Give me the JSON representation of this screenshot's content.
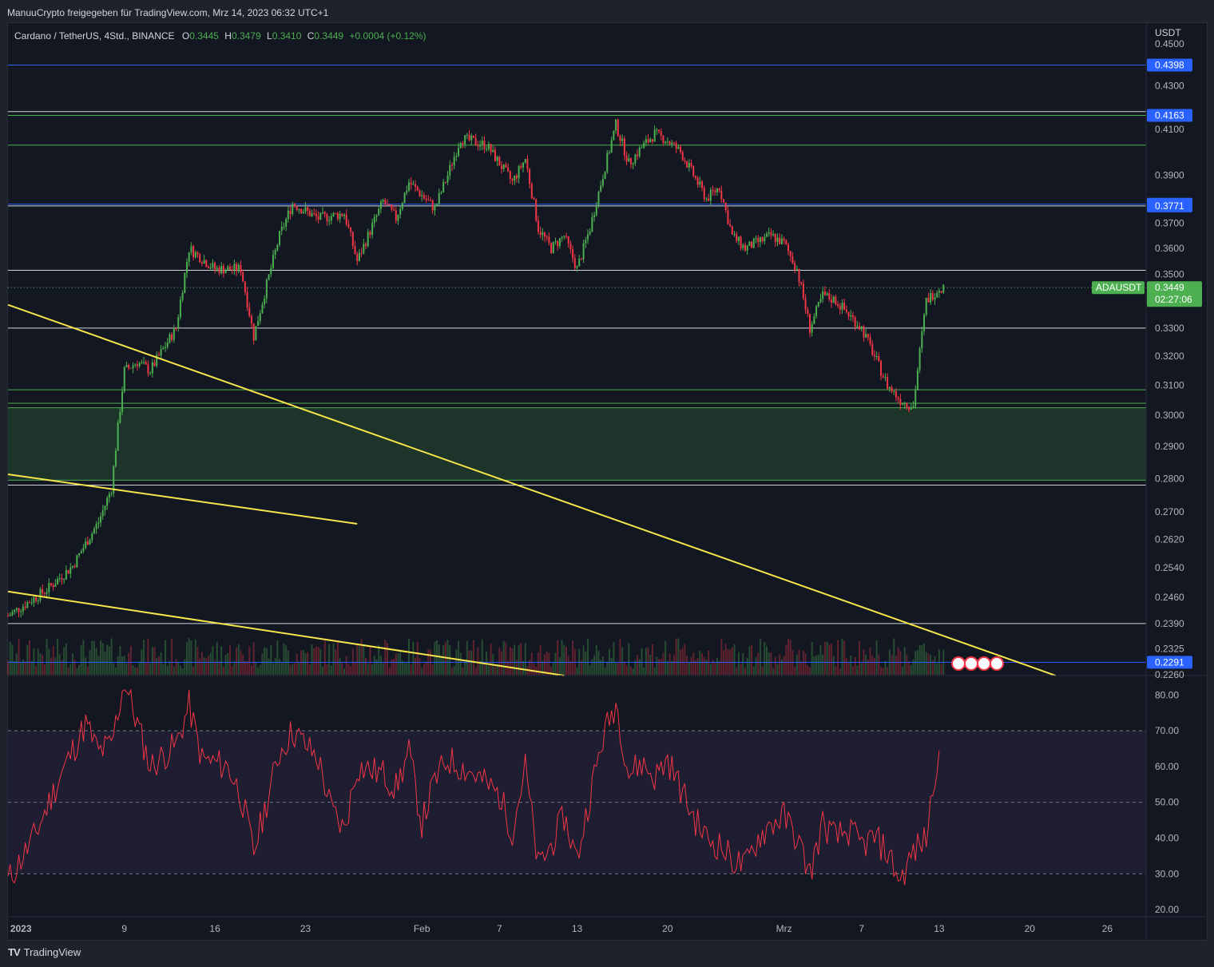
{
  "header": {
    "publisher": "ManuuCrypto freigegeben für TradingView.com, Mrz 14, 2023 06:32 UTC+1"
  },
  "legend": {
    "symbol": "Cardano / TetherUS, 4Std., BINANCE",
    "o_label": "O",
    "o_value": "0.3445",
    "h_label": "H",
    "h_value": "0.3479",
    "l_label": "L",
    "l_value": "0.3410",
    "c_label": "C",
    "c_value": "0.3449",
    "change": "+0.0004 (+0.12%)"
  },
  "footer": {
    "brand": "TradingView",
    "logo": "TV"
  },
  "colors": {
    "up": "#4caf50",
    "down": "#f23645",
    "bg": "#131722",
    "trendline": "#f7e54b",
    "blue_level": "#2962ff",
    "rsi": "#f23645"
  },
  "chart_data": [
    {
      "type": "candlestick",
      "title": "Cardano / TetherUS, 4Std., BINANCE",
      "y_unit": "USDT",
      "y_scale": "log",
      "ylim": [
        0.226,
        0.46
      ],
      "y_ticks": [
        "0.4500",
        "0.4300",
        "0.4100",
        "0.3900",
        "0.3700",
        "0.3600",
        "0.3500",
        "0.3300",
        "0.3200",
        "0.3100",
        "0.3000",
        "0.2900",
        "0.2800",
        "0.2700",
        "0.2620",
        "0.2540",
        "0.2460",
        "0.2390",
        "0.2325",
        "0.2260"
      ],
      "x_ticks": [
        "2023",
        "9",
        "16",
        "23",
        "Feb",
        "7",
        "13",
        "20",
        "Mrz",
        "7",
        "13",
        "20",
        "26"
      ],
      "x_dates": [
        "2023-01-01",
        "2023-01-09",
        "2023-01-16",
        "2023-01-23",
        "2023-02-01",
        "2023-02-07",
        "2023-02-13",
        "2023-02-20",
        "2023-03-01",
        "2023-03-07",
        "2023-03-13",
        "2023-03-20",
        "2023-03-26"
      ],
      "x_range": [
        "2022-12-31",
        "2023-03-29"
      ],
      "last_price": {
        "label": "ADAUSDT",
        "value": "0.3449",
        "countdown": "02:27:06"
      },
      "price_labels": [
        "0.4398",
        "0.4163",
        "0.3778",
        "0.3771",
        "0.2291"
      ],
      "horizontal_levels": [
        {
          "price": 0.4398,
          "color": "blue"
        },
        {
          "price": 0.418,
          "color": "white"
        },
        {
          "price": 0.4163,
          "color": "green"
        },
        {
          "price": 0.403,
          "color": "green"
        },
        {
          "price": 0.3778,
          "color": "blue"
        },
        {
          "price": 0.3771,
          "color": "white"
        },
        {
          "price": 0.3515,
          "color": "white"
        },
        {
          "price": 0.33,
          "color": "white"
        },
        {
          "price": 0.3085,
          "color": "green"
        },
        {
          "price": 0.304,
          "color": "green"
        },
        {
          "price": 0.3025,
          "color": "green"
        },
        {
          "price": 0.2795,
          "color": "green"
        },
        {
          "price": 0.278,
          "color": "white"
        },
        {
          "price": 0.239,
          "color": "white"
        },
        {
          "price": 0.2291,
          "color": "blue"
        }
      ],
      "demand_zone": {
        "top": 0.3025,
        "bottom": 0.2795
      },
      "trendlines": [
        {
          "from": [
            "2022-12-31",
            0.3385
          ],
          "to": [
            "2023-03-22",
            0.2258
          ]
        },
        {
          "from": [
            "2022-12-31",
            0.2813
          ],
          "to": [
            "2023-01-27",
            0.2665
          ]
        },
        {
          "from": [
            "2022-12-31",
            0.2475
          ],
          "to": [
            "2023-02-12",
            0.2258
          ]
        }
      ],
      "closes": [
        {
          "date": "2022-12-31",
          "close": 0.241
        },
        {
          "date": "2023-01-03",
          "close": 0.248
        },
        {
          "date": "2023-01-05",
          "close": 0.2545
        },
        {
          "date": "2023-01-07",
          "close": 0.267
        },
        {
          "date": "2023-01-08",
          "close": 0.277
        },
        {
          "date": "2023-01-09",
          "close": 0.315
        },
        {
          "date": "2023-01-10",
          "close": 0.318
        },
        {
          "date": "2023-01-11",
          "close": 0.315
        },
        {
          "date": "2023-01-13",
          "close": 0.33
        },
        {
          "date": "2023-01-14",
          "close": 0.36
        },
        {
          "date": "2023-01-16",
          "close": 0.352
        },
        {
          "date": "2023-01-18",
          "close": 0.352
        },
        {
          "date": "2023-01-19",
          "close": 0.327
        },
        {
          "date": "2023-01-21",
          "close": 0.365
        },
        {
          "date": "2023-01-22",
          "close": 0.378
        },
        {
          "date": "2023-01-24",
          "close": 0.372
        },
        {
          "date": "2023-01-26",
          "close": 0.374
        },
        {
          "date": "2023-01-27",
          "close": 0.355
        },
        {
          "date": "2023-01-29",
          "close": 0.379
        },
        {
          "date": "2023-01-30",
          "close": 0.372
        },
        {
          "date": "2023-01-31",
          "close": 0.387
        },
        {
          "date": "2023-02-02",
          "close": 0.376
        },
        {
          "date": "2023-02-03",
          "close": 0.39
        },
        {
          "date": "2023-02-04",
          "close": 0.406
        },
        {
          "date": "2023-02-06",
          "close": 0.403
        },
        {
          "date": "2023-02-07",
          "close": 0.395
        },
        {
          "date": "2023-02-08",
          "close": 0.387
        },
        {
          "date": "2023-02-09",
          "close": 0.397
        },
        {
          "date": "2023-02-10",
          "close": 0.368
        },
        {
          "date": "2023-02-11",
          "close": 0.36
        },
        {
          "date": "2023-02-12",
          "close": 0.365
        },
        {
          "date": "2023-02-13",
          "close": 0.352
        },
        {
          "date": "2023-02-14",
          "close": 0.368
        },
        {
          "date": "2023-02-15",
          "close": 0.39
        },
        {
          "date": "2023-02-16",
          "close": 0.412
        },
        {
          "date": "2023-02-17",
          "close": 0.395
        },
        {
          "date": "2023-02-18",
          "close": 0.402
        },
        {
          "date": "2023-02-19",
          "close": 0.408
        },
        {
          "date": "2023-02-20",
          "close": 0.405
        },
        {
          "date": "2023-02-21",
          "close": 0.4
        },
        {
          "date": "2023-02-22",
          "close": 0.39
        },
        {
          "date": "2023-02-23",
          "close": 0.38
        },
        {
          "date": "2023-02-24",
          "close": 0.385
        },
        {
          "date": "2023-02-25",
          "close": 0.365
        },
        {
          "date": "2023-02-26",
          "close": 0.36
        },
        {
          "date": "2023-02-28",
          "close": 0.365
        },
        {
          "date": "2023-03-01",
          "close": 0.362
        },
        {
          "date": "2023-03-02",
          "close": 0.352
        },
        {
          "date": "2023-03-03",
          "close": 0.33
        },
        {
          "date": "2023-03-04",
          "close": 0.342
        },
        {
          "date": "2023-03-05",
          "close": 0.34
        },
        {
          "date": "2023-03-06",
          "close": 0.335
        },
        {
          "date": "2023-03-07",
          "close": 0.33
        },
        {
          "date": "2023-03-08",
          "close": 0.32
        },
        {
          "date": "2023-03-09",
          "close": 0.31
        },
        {
          "date": "2023-03-10",
          "close": 0.305
        },
        {
          "date": "2023-03-11",
          "close": 0.303
        },
        {
          "date": "2023-03-12",
          "close": 0.34
        },
        {
          "date": "2023-03-13",
          "close": 0.3449
        }
      ]
    },
    {
      "type": "line",
      "title": "RSI",
      "ylim": [
        18,
        85
      ],
      "y_ticks": [
        "80.00",
        "70.00",
        "60.00",
        "50.00",
        "40.00",
        "30.00",
        "20.00"
      ],
      "bands": {
        "upper": 70,
        "middle": 50,
        "lower": 30
      },
      "series": [
        {
          "values_by_date": [
            {
              "date": "2022-12-31",
              "value": 28
            },
            {
              "date": "2023-01-02",
              "value": 40
            },
            {
              "date": "2023-01-04",
              "value": 57
            },
            {
              "date": "2023-01-06",
              "value": 72
            },
            {
              "date": "2023-01-07",
              "value": 64
            },
            {
              "date": "2023-01-08",
              "value": 66
            },
            {
              "date": "2023-01-09",
              "value": 84
            },
            {
              "date": "2023-01-10",
              "value": 72
            },
            {
              "date": "2023-01-11",
              "value": 60
            },
            {
              "date": "2023-01-13",
              "value": 66
            },
            {
              "date": "2023-01-14",
              "value": 77
            },
            {
              "date": "2023-01-15",
              "value": 62
            },
            {
              "date": "2023-01-17",
              "value": 60
            },
            {
              "date": "2023-01-18",
              "value": 52
            },
            {
              "date": "2023-01-19",
              "value": 36
            },
            {
              "date": "2023-01-20",
              "value": 50
            },
            {
              "date": "2023-01-21",
              "value": 64
            },
            {
              "date": "2023-01-22",
              "value": 70
            },
            {
              "date": "2023-01-24",
              "value": 62
            },
            {
              "date": "2023-01-25",
              "value": 48
            },
            {
              "date": "2023-01-26",
              "value": 42
            },
            {
              "date": "2023-01-27",
              "value": 60
            },
            {
              "date": "2023-01-29",
              "value": 58
            },
            {
              "date": "2023-01-30",
              "value": 54
            },
            {
              "date": "2023-01-31",
              "value": 64
            },
            {
              "date": "2023-02-01",
              "value": 44
            },
            {
              "date": "2023-02-02",
              "value": 56
            },
            {
              "date": "2023-02-03",
              "value": 62
            },
            {
              "date": "2023-02-05",
              "value": 58
            },
            {
              "date": "2023-02-07",
              "value": 52
            },
            {
              "date": "2023-02-08",
              "value": 42
            },
            {
              "date": "2023-02-09",
              "value": 60
            },
            {
              "date": "2023-02-10",
              "value": 32
            },
            {
              "date": "2023-02-11",
              "value": 38
            },
            {
              "date": "2023-02-12",
              "value": 46
            },
            {
              "date": "2023-02-13",
              "value": 34
            },
            {
              "date": "2023-02-14",
              "value": 52
            },
            {
              "date": "2023-02-15",
              "value": 68
            },
            {
              "date": "2023-02-16",
              "value": 78
            },
            {
              "date": "2023-02-17",
              "value": 58
            },
            {
              "date": "2023-02-18",
              "value": 61
            },
            {
              "date": "2023-02-19",
              "value": 57
            },
            {
              "date": "2023-02-20",
              "value": 62
            },
            {
              "date": "2023-02-21",
              "value": 54
            },
            {
              "date": "2023-02-22",
              "value": 46
            },
            {
              "date": "2023-02-23",
              "value": 40
            },
            {
              "date": "2023-02-24",
              "value": 38
            },
            {
              "date": "2023-02-25",
              "value": 34
            },
            {
              "date": "2023-02-26",
              "value": 32
            },
            {
              "date": "2023-02-27",
              "value": 40
            },
            {
              "date": "2023-02-28",
              "value": 44
            },
            {
              "date": "2023-03-01",
              "value": 46
            },
            {
              "date": "2023-03-02",
              "value": 40
            },
            {
              "date": "2023-03-03",
              "value": 30
            },
            {
              "date": "2023-03-04",
              "value": 44
            },
            {
              "date": "2023-03-05",
              "value": 40
            },
            {
              "date": "2023-03-06",
              "value": 42
            },
            {
              "date": "2023-03-07",
              "value": 38
            },
            {
              "date": "2023-03-08",
              "value": 40
            },
            {
              "date": "2023-03-09",
              "value": 36
            },
            {
              "date": "2023-03-10",
              "value": 28
            },
            {
              "date": "2023-03-11",
              "value": 36
            },
            {
              "date": "2023-03-12",
              "value": 40
            },
            {
              "date": "2023-03-13",
              "value": 67
            }
          ]
        }
      ]
    }
  ]
}
